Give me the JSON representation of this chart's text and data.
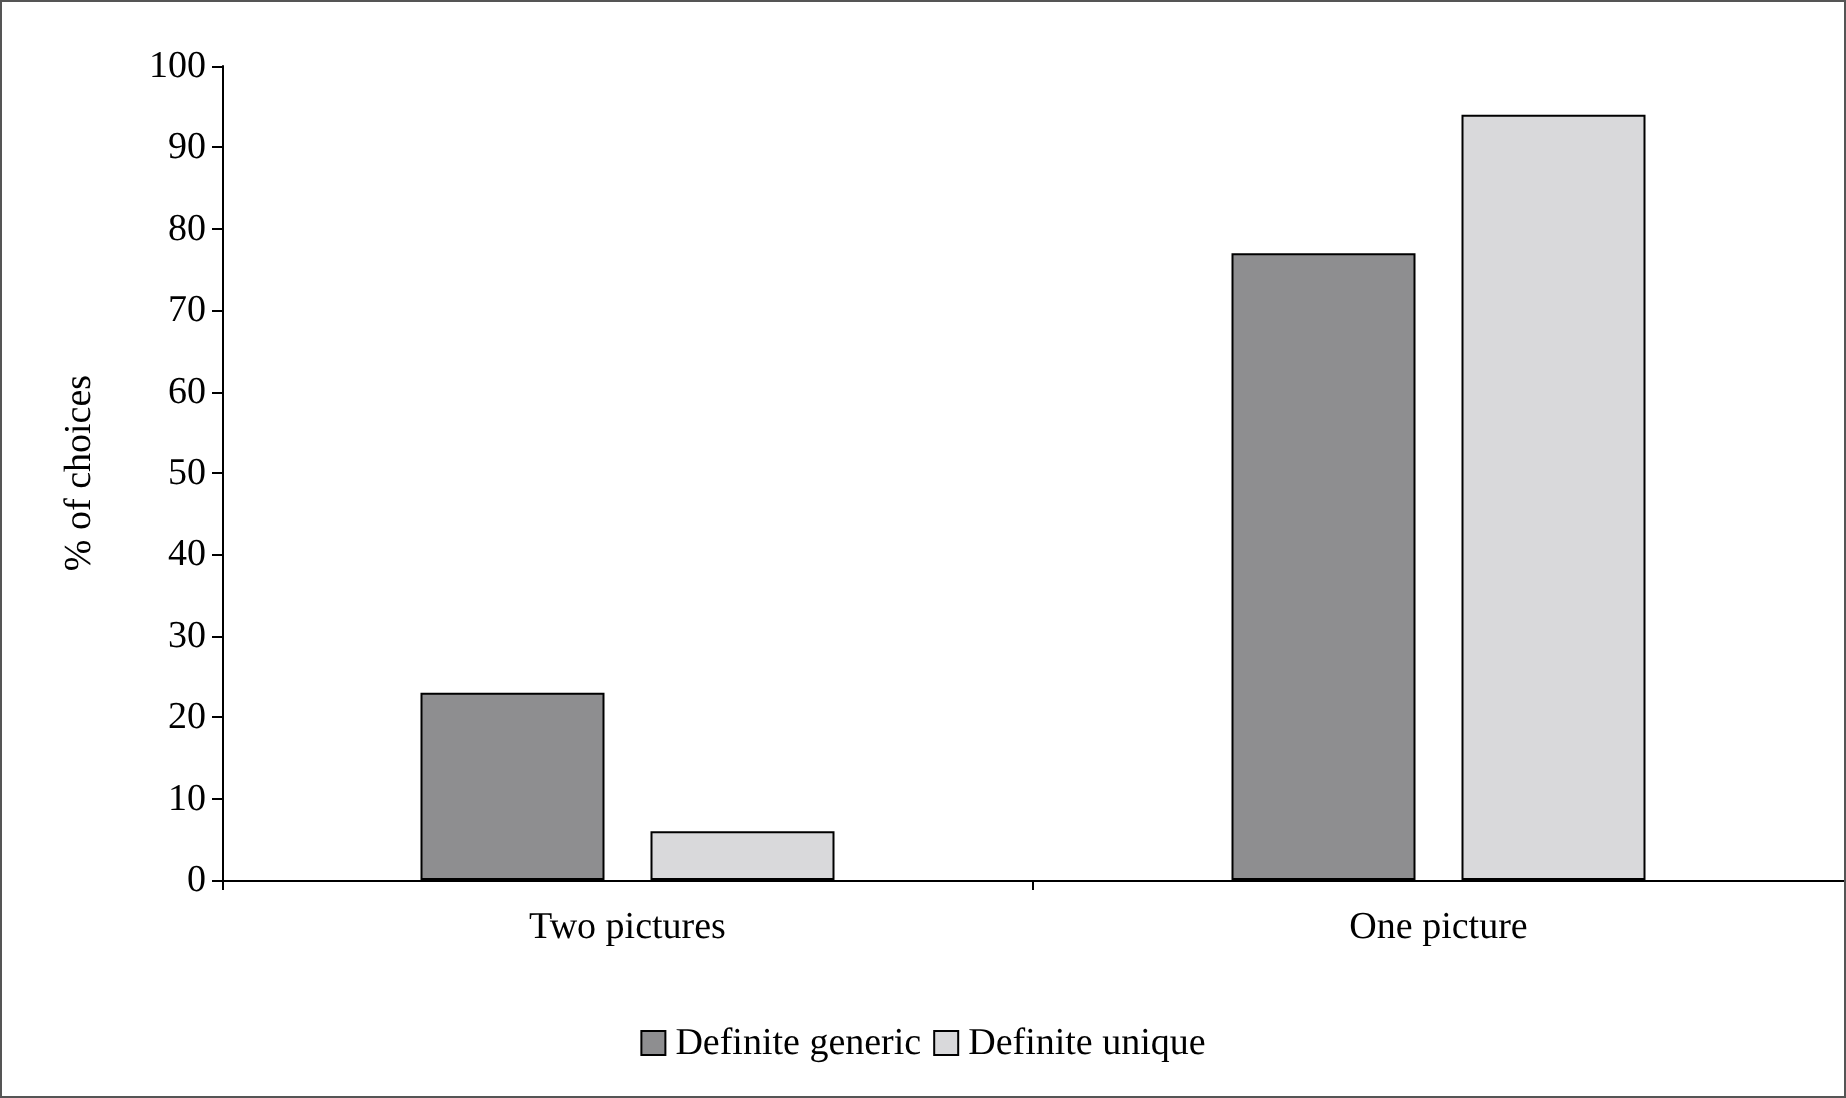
{
  "chart_data": {
    "type": "bar",
    "ylabel": "% of choices",
    "categories": [
      "Two pictures",
      "One picture"
    ],
    "series": [
      {
        "name": "Definite generic",
        "color": "#8e8e90",
        "values": [
          23,
          77
        ]
      },
      {
        "name": "Definite unique",
        "color": "#d9d9db",
        "values": [
          6,
          94
        ]
      }
    ],
    "ylim": [
      0,
      100
    ],
    "yticks": [
      0,
      10,
      20,
      30,
      40,
      50,
      60,
      70,
      80,
      90,
      100
    ],
    "grid": false,
    "legend": "bottom"
  }
}
